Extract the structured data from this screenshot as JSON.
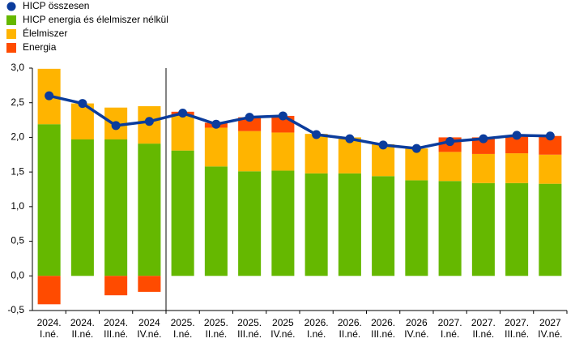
{
  "chart_data": {
    "type": "stacked-bar-line",
    "categories": [
      [
        "2024.",
        "I.né."
      ],
      [
        "2024.",
        "II.né."
      ],
      [
        "2024.",
        "III.né."
      ],
      [
        "2024",
        "IV.né."
      ],
      [
        "2025.",
        "I.né."
      ],
      [
        "2025.",
        "II.né."
      ],
      [
        "2025.",
        "III.né."
      ],
      [
        "2025",
        "IV.né."
      ],
      [
        "2026.",
        "I.né."
      ],
      [
        "2026.",
        "II.né."
      ],
      [
        "2026.",
        "III.né."
      ],
      [
        "2026",
        "IV.né."
      ],
      [
        "2027.",
        "I.né."
      ],
      [
        "2027.",
        "II.né."
      ],
      [
        "2027.",
        "III.né."
      ],
      [
        "2027",
        "IV.né."
      ]
    ],
    "series": [
      {
        "name": "HICP összesen",
        "color": "#0b3c9c",
        "kind": "line",
        "values": [
          2.6,
          2.49,
          2.17,
          2.23,
          2.35,
          2.19,
          2.29,
          2.31,
          2.04,
          1.98,
          1.89,
          1.84,
          1.94,
          1.98,
          2.03,
          2.02
        ]
      },
      {
        "name": "HICP energia és élelmiszer nélkül",
        "color": "#65b800",
        "kind": "bar",
        "values": [
          2.19,
          1.97,
          1.97,
          1.91,
          1.81,
          1.58,
          1.51,
          1.52,
          1.48,
          1.48,
          1.44,
          1.38,
          1.37,
          1.34,
          1.34,
          1.33
        ]
      },
      {
        "name": "Élelmiszer",
        "color": "#ffb400",
        "kind": "bar",
        "values": [
          0.8,
          0.52,
          0.46,
          0.54,
          0.5,
          0.56,
          0.58,
          0.55,
          0.57,
          0.52,
          0.46,
          0.46,
          0.42,
          0.42,
          0.43,
          0.42
        ]
      },
      {
        "name": "Energia",
        "color": "#ff4b00",
        "kind": "bar",
        "values": [
          -0.41,
          0,
          -0.28,
          -0.23,
          0.06,
          0.07,
          0.2,
          0.24,
          0,
          0,
          0,
          0,
          0.21,
          0.24,
          0.25,
          0.27
        ]
      }
    ],
    "ylim": [
      -0.5,
      3.0
    ],
    "yticks": [
      {
        "value": 3.0,
        "label": "3,0"
      },
      {
        "value": 2.5,
        "label": "2,5"
      },
      {
        "value": 2.0,
        "label": "2,0"
      },
      {
        "value": 1.5,
        "label": "1,5"
      },
      {
        "value": 1.0,
        "label": "1,0"
      },
      {
        "value": 0.5,
        "label": "0,5"
      },
      {
        "value": 0.0,
        "label": "0,0"
      },
      {
        "value": -0.5,
        "label": "-0,5"
      }
    ],
    "grid": false,
    "legend": "top-left"
  }
}
